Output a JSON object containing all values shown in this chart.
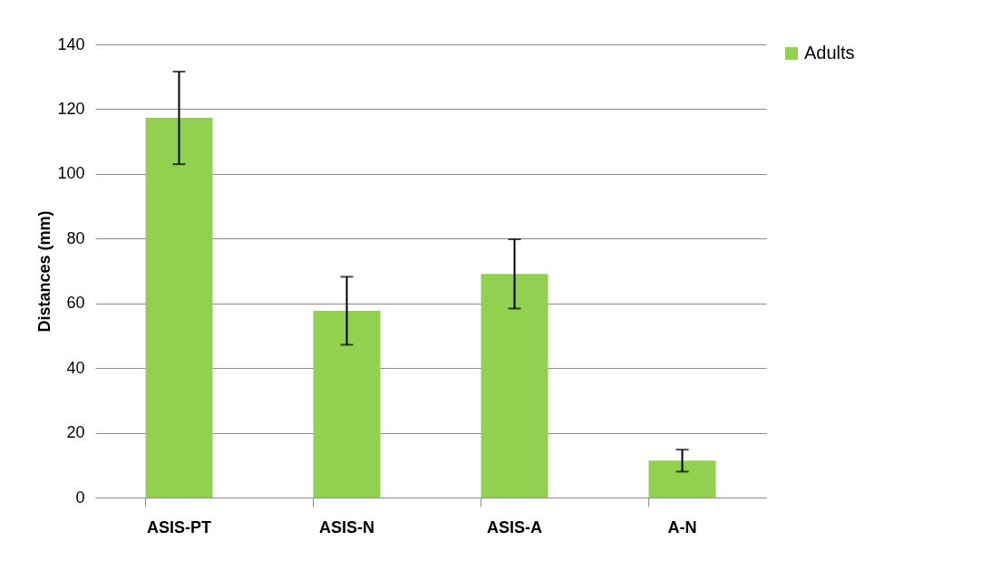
{
  "chart_data": {
    "type": "bar",
    "ylabel": "Distances (mm)",
    "categories": [
      "ASIS-PT",
      "ASIS-N",
      "ASIS-A",
      "A-N"
    ],
    "series": [
      {
        "name": "Adults",
        "color": "#92d050",
        "values": [
          117.3,
          57.7,
          69.1,
          11.4
        ],
        "errors": [
          14.3,
          10.5,
          10.7,
          3.4
        ]
      }
    ],
    "ylim": [
      0,
      140
    ],
    "yticks": [
      0,
      20,
      40,
      60,
      80,
      100,
      120,
      140
    ],
    "grid": "y",
    "legend": "right"
  }
}
